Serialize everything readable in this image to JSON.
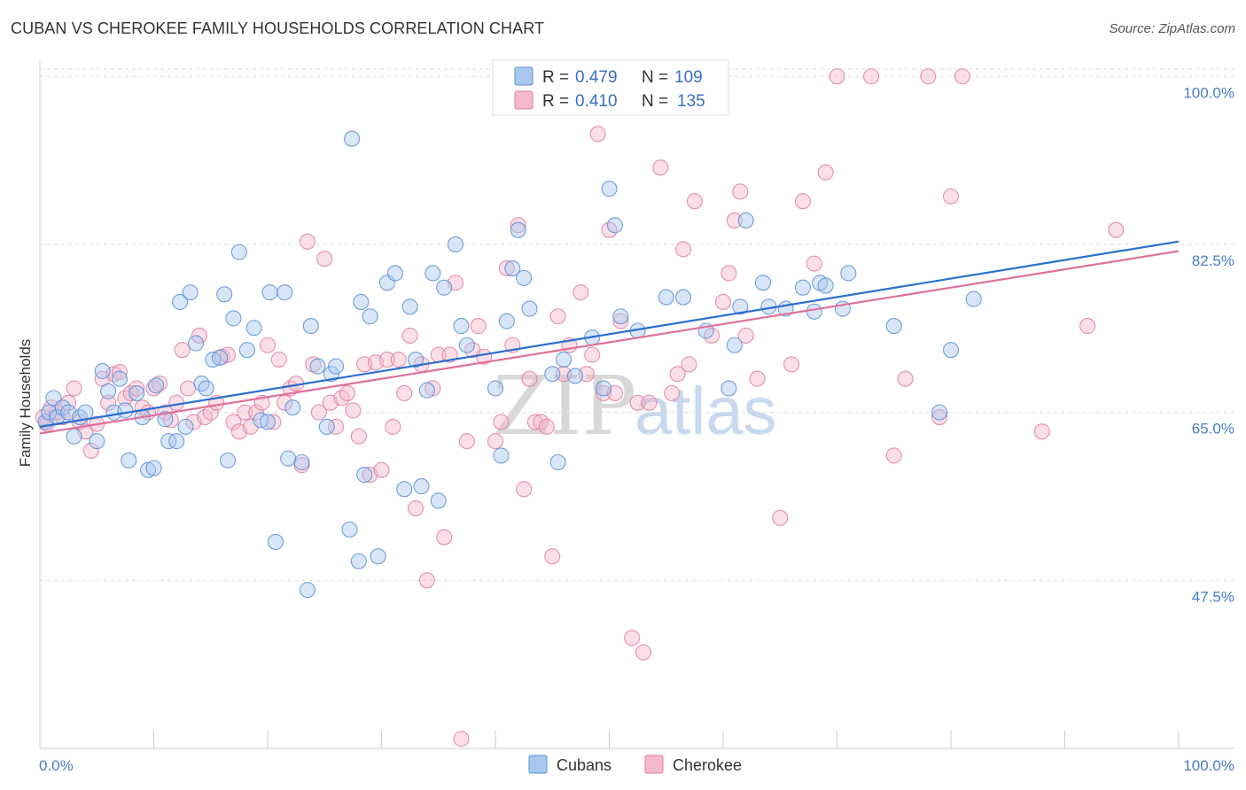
{
  "title": "CUBAN VS CHEROKEE FAMILY HOUSEHOLDS CORRELATION CHART",
  "source": "Source: ZipAtlas.com",
  "watermark": {
    "zip": "ZIP",
    "atlas": "atlas"
  },
  "legend": {
    "rows": [
      {
        "r_label": "R =",
        "r_value": "0.479",
        "n_label": "N =",
        "n_value": "109"
      },
      {
        "r_label": "R =",
        "r_value": "0.410",
        "n_label": "N =",
        "n_value": "135"
      }
    ]
  },
  "bottom_legend": {
    "cubans": "Cubans",
    "cherokee": "Cherokee"
  },
  "colors": {
    "cubans_fill": "#a9c8f0",
    "cubans_stroke": "#5b8fd6",
    "cubans_line": "#2a6fd0",
    "cherokee_fill": "#f5b8cc",
    "cherokee_stroke": "#e07fa0",
    "cherokee_line": "#e0709a",
    "tick_label": "#4a7cc9",
    "grid": "#dddddd"
  },
  "chart_data": {
    "type": "scatter",
    "xlabel": "",
    "ylabel": "Family Households",
    "xlim": [
      0,
      100
    ],
    "ylim": [
      30,
      101.5
    ],
    "x_tick_labels": [
      "0.0%",
      "100.0%"
    ],
    "y_ticks": [
      47.5,
      65.0,
      82.5,
      100.0
    ],
    "y_tick_labels": [
      "47.5%",
      "65.0%",
      "82.5%",
      "100.0%"
    ],
    "grid": true,
    "legend_position": "top-center",
    "series": [
      {
        "name": "Cubans",
        "trend": {
          "x": [
            0,
            100
          ],
          "y": [
            63.5,
            82.8
          ]
        },
        "points": [
          [
            0.5,
            64.0
          ],
          [
            0.8,
            65.0
          ],
          [
            1.2,
            66.5
          ],
          [
            1.5,
            64.5
          ],
          [
            2.0,
            65.5
          ],
          [
            2.5,
            65.0
          ],
          [
            3.0,
            62.5
          ],
          [
            3.5,
            64.5
          ],
          [
            4.0,
            65.0
          ],
          [
            5.0,
            62.0
          ],
          [
            5.5,
            69.3
          ],
          [
            6.0,
            67.2
          ],
          [
            6.5,
            65.0
          ],
          [
            7.0,
            68.5
          ],
          [
            7.5,
            65.2
          ],
          [
            7.8,
            60.0
          ],
          [
            8.5,
            67.0
          ],
          [
            9.0,
            64.5
          ],
          [
            9.5,
            59.0
          ],
          [
            10.0,
            59.2
          ],
          [
            10.2,
            67.8
          ],
          [
            11.0,
            64.3
          ],
          [
            11.3,
            62.0
          ],
          [
            12.0,
            62.0
          ],
          [
            12.3,
            76.5
          ],
          [
            12.8,
            63.5
          ],
          [
            13.2,
            77.5
          ],
          [
            13.7,
            72.2
          ],
          [
            14.2,
            68.0
          ],
          [
            14.6,
            67.5
          ],
          [
            15.2,
            70.5
          ],
          [
            15.8,
            70.7
          ],
          [
            16.2,
            77.3
          ],
          [
            16.5,
            60.0
          ],
          [
            17.0,
            74.8
          ],
          [
            17.5,
            81.7
          ],
          [
            18.2,
            71.5
          ],
          [
            18.8,
            73.8
          ],
          [
            19.4,
            64.2
          ],
          [
            20.0,
            64.0
          ],
          [
            20.2,
            77.5
          ],
          [
            20.7,
            51.5
          ],
          [
            21.5,
            77.5
          ],
          [
            21.8,
            60.2
          ],
          [
            22.2,
            65.5
          ],
          [
            23.0,
            59.8
          ],
          [
            23.5,
            46.5
          ],
          [
            23.8,
            74.0
          ],
          [
            24.4,
            69.8
          ],
          [
            25.2,
            63.5
          ],
          [
            25.6,
            69.0
          ],
          [
            26.0,
            69.8
          ],
          [
            27.2,
            52.8
          ],
          [
            27.4,
            93.5
          ],
          [
            28.0,
            49.5
          ],
          [
            28.2,
            76.5
          ],
          [
            28.5,
            58.5
          ],
          [
            29.0,
            75.0
          ],
          [
            29.7,
            50.0
          ],
          [
            30.5,
            78.5
          ],
          [
            31.2,
            79.5
          ],
          [
            32.0,
            57.0
          ],
          [
            32.5,
            76.0
          ],
          [
            33.0,
            70.5
          ],
          [
            33.5,
            57.3
          ],
          [
            34.0,
            67.3
          ],
          [
            34.5,
            79.5
          ],
          [
            35.0,
            55.8
          ],
          [
            35.5,
            78.0
          ],
          [
            36.5,
            82.5
          ],
          [
            37.0,
            74.0
          ],
          [
            37.5,
            72.0
          ],
          [
            40.0,
            67.5
          ],
          [
            40.5,
            60.5
          ],
          [
            41.0,
            74.5
          ],
          [
            41.5,
            80.0
          ],
          [
            42.0,
            84.0
          ],
          [
            42.5,
            79.0
          ],
          [
            43.0,
            75.8
          ],
          [
            45.0,
            69.0
          ],
          [
            45.5,
            59.8
          ],
          [
            46.0,
            70.5
          ],
          [
            47.0,
            68.8
          ],
          [
            48.5,
            72.8
          ],
          [
            49.5,
            67.5
          ],
          [
            50.0,
            88.3
          ],
          [
            50.5,
            84.5
          ],
          [
            51.0,
            75.0
          ],
          [
            52.5,
            73.5
          ],
          [
            55.0,
            77.0
          ],
          [
            56.5,
            77.0
          ],
          [
            58.5,
            73.5
          ],
          [
            60.5,
            67.5
          ],
          [
            61.0,
            72.0
          ],
          [
            61.5,
            76.0
          ],
          [
            62.0,
            85.0
          ],
          [
            63.5,
            78.5
          ],
          [
            64.0,
            76.0
          ],
          [
            65.5,
            75.8
          ],
          [
            67.0,
            78.0
          ],
          [
            68.0,
            75.5
          ],
          [
            68.5,
            78.5
          ],
          [
            69.0,
            78.2
          ],
          [
            70.5,
            75.8
          ],
          [
            71.0,
            79.5
          ],
          [
            75.0,
            74.0
          ],
          [
            79.0,
            65.0
          ],
          [
            80.0,
            71.5
          ],
          [
            82.0,
            76.8
          ]
        ]
      },
      {
        "name": "Cherokee",
        "trend": {
          "x": [
            0,
            100
          ],
          "y": [
            62.8,
            81.8
          ]
        },
        "points": [
          [
            0.3,
            64.5
          ],
          [
            0.6,
            63.8
          ],
          [
            1.0,
            65.5
          ],
          [
            1.5,
            65.0
          ],
          [
            2.0,
            64.5
          ],
          [
            2.5,
            66.0
          ],
          [
            3.0,
            67.5
          ],
          [
            3.5,
            64.0
          ],
          [
            4.0,
            63.0
          ],
          [
            4.5,
            61.0
          ],
          [
            5.0,
            63.8
          ],
          [
            5.5,
            68.5
          ],
          [
            6.0,
            66.0
          ],
          [
            6.5,
            69.0
          ],
          [
            7.0,
            69.2
          ],
          [
            7.5,
            66.5
          ],
          [
            8.0,
            67.0
          ],
          [
            8.5,
            67.5
          ],
          [
            9.0,
            65.5
          ],
          [
            9.5,
            65.0
          ],
          [
            10.0,
            67.5
          ],
          [
            10.5,
            68.0
          ],
          [
            11.0,
            65.0
          ],
          [
            11.5,
            64.2
          ],
          [
            12.0,
            66.0
          ],
          [
            12.5,
            71.5
          ],
          [
            13.0,
            67.5
          ],
          [
            13.5,
            64.0
          ],
          [
            14.0,
            73.0
          ],
          [
            14.5,
            64.5
          ],
          [
            15.0,
            65.0
          ],
          [
            15.5,
            66.0
          ],
          [
            16.0,
            70.8
          ],
          [
            16.5,
            71.0
          ],
          [
            17.0,
            64.0
          ],
          [
            17.5,
            63.0
          ],
          [
            18.0,
            65.0
          ],
          [
            18.5,
            63.5
          ],
          [
            19.0,
            65.0
          ],
          [
            19.5,
            66.0
          ],
          [
            20.0,
            72.0
          ],
          [
            20.5,
            64.0
          ],
          [
            21.0,
            70.5
          ],
          [
            21.5,
            66.0
          ],
          [
            22.0,
            67.5
          ],
          [
            22.5,
            68.0
          ],
          [
            23.0,
            59.5
          ],
          [
            23.5,
            82.8
          ],
          [
            24.0,
            70.0
          ],
          [
            24.5,
            65.0
          ],
          [
            25.0,
            81.0
          ],
          [
            25.5,
            66.0
          ],
          [
            26.0,
            63.5
          ],
          [
            26.5,
            66.5
          ],
          [
            27.0,
            67.0
          ],
          [
            27.5,
            65.2
          ],
          [
            28.0,
            62.5
          ],
          [
            28.5,
            70.0
          ],
          [
            29.0,
            58.5
          ],
          [
            29.5,
            70.2
          ],
          [
            30.0,
            59.0
          ],
          [
            30.5,
            70.5
          ],
          [
            31.0,
            63.5
          ],
          [
            31.5,
            70.5
          ],
          [
            32.0,
            67.0
          ],
          [
            32.5,
            73.0
          ],
          [
            33.0,
            55.0
          ],
          [
            33.5,
            70.0
          ],
          [
            34.0,
            47.5
          ],
          [
            34.5,
            67.5
          ],
          [
            35.0,
            71.0
          ],
          [
            35.5,
            52.0
          ],
          [
            36.0,
            71.0
          ],
          [
            36.5,
            78.5
          ],
          [
            37.0,
            31.0
          ],
          [
            37.5,
            62.0
          ],
          [
            38.0,
            71.5
          ],
          [
            38.5,
            74.0
          ],
          [
            39.0,
            70.8
          ],
          [
            40.0,
            62.0
          ],
          [
            40.5,
            64.0
          ],
          [
            41.0,
            80.0
          ],
          [
            41.5,
            72.0
          ],
          [
            42.0,
            84.5
          ],
          [
            42.5,
            57.0
          ],
          [
            43.0,
            68.5
          ],
          [
            43.5,
            64.0
          ],
          [
            44.0,
            64.0
          ],
          [
            44.5,
            63.5
          ],
          [
            45.0,
            50.0
          ],
          [
            45.5,
            75.0
          ],
          [
            46.0,
            69.0
          ],
          [
            46.5,
            72.0
          ],
          [
            47.5,
            77.5
          ],
          [
            48.0,
            69.0
          ],
          [
            48.5,
            71.0
          ],
          [
            49.0,
            94.0
          ],
          [
            49.5,
            67.0
          ],
          [
            50.0,
            84.0
          ],
          [
            50.5,
            67.0
          ],
          [
            51.0,
            74.5
          ],
          [
            52.0,
            41.5
          ],
          [
            52.5,
            66.0
          ],
          [
            53.0,
            40.0
          ],
          [
            53.5,
            66.0
          ],
          [
            54.5,
            90.5
          ],
          [
            55.5,
            67.0
          ],
          [
            56.0,
            69.0
          ],
          [
            56.5,
            82.0
          ],
          [
            57.0,
            70.0
          ],
          [
            57.5,
            87.0
          ],
          [
            58.0,
            100.0
          ],
          [
            59.0,
            73.0
          ],
          [
            60.0,
            76.5
          ],
          [
            60.5,
            79.5
          ],
          [
            61.0,
            85.0
          ],
          [
            61.5,
            88.0
          ],
          [
            62.0,
            73.0
          ],
          [
            63.0,
            68.5
          ],
          [
            65.0,
            54.0
          ],
          [
            66.0,
            70.0
          ],
          [
            67.0,
            87.0
          ],
          [
            68.0,
            80.5
          ],
          [
            69.0,
            90.0
          ],
          [
            70.0,
            100.0
          ],
          [
            73.0,
            100.0
          ],
          [
            75.0,
            60.5
          ],
          [
            76.0,
            68.5
          ],
          [
            78.0,
            100.0
          ],
          [
            79.0,
            64.5
          ],
          [
            80.0,
            87.5
          ],
          [
            81.0,
            100.0
          ],
          [
            88.0,
            63.0
          ],
          [
            92.0,
            74.0
          ],
          [
            94.5,
            84.0
          ]
        ]
      }
    ]
  }
}
